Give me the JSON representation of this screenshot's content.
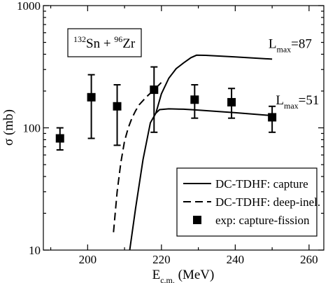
{
  "chart_data": {
    "type": "line",
    "xlabel": {
      "main": "E",
      "sub": "c.m.",
      "unit": " (MeV)"
    },
    "ylabel": "σ (mb)",
    "xlim": [
      188,
      264
    ],
    "ylim": [
      10,
      1000
    ],
    "yscale": "log",
    "grid": false,
    "x_ticks": [
      200,
      220,
      240,
      260
    ],
    "x_tick_labels": [
      "200",
      "220",
      "240",
      "260"
    ],
    "y_ticks": [
      10,
      100,
      1000
    ],
    "y_tick_labels": [
      "10",
      "100",
      "1000"
    ],
    "reaction_label": {
      "mass1": "132",
      "el1": "Sn",
      "plus": " + ",
      "mass2": "96",
      "el2": "Zr"
    },
    "annotations": [
      {
        "main": "L",
        "sub": "max",
        "rest": "=87",
        "x": 249,
        "y": 450
      },
      {
        "main": "L",
        "sub": "max",
        "rest": "=51",
        "x": 251,
        "y": 156
      }
    ],
    "legend_position": "bottom-right",
    "series": [
      {
        "name": "DC-TDHF: capture",
        "kind": "line",
        "dash": "solid",
        "x": [
          211.4,
          213,
          215,
          217,
          218.5,
          219.5,
          222,
          226,
          229.5,
          240,
          250
        ],
        "y": [
          10,
          22,
          55,
          110,
          132,
          141,
          143,
          142,
          140,
          133,
          126
        ]
      },
      {
        "name": "",
        "kind": "line",
        "dash": "solid",
        "x": [
          218.5,
          220,
          222,
          224,
          226,
          228,
          229.5,
          232,
          240,
          250
        ],
        "y": [
          132,
          190,
          255,
          305,
          340,
          375,
          393,
          392,
          380,
          365
        ]
      },
      {
        "name": "DC-TDHF: deep-inel.",
        "kind": "line",
        "dash": "dashed",
        "x": [
          207,
          208,
          209,
          210,
          211,
          212,
          213,
          214,
          216,
          218,
          220
        ],
        "y": [
          14,
          30,
          52,
          78,
          100,
          120,
          138,
          155,
          180,
          205,
          235
        ]
      },
      {
        "name": "exp: capture-fission",
        "kind": "scatter_errorbars",
        "x": [
          192.5,
          201,
          208,
          218,
          229,
          239,
          250
        ],
        "y": [
          82,
          178,
          150,
          205,
          170,
          162,
          122
        ],
        "err_low": [
          66,
          82,
          72,
          92,
          120,
          120,
          92
        ],
        "err_high": [
          100,
          272,
          225,
          315,
          225,
          210,
          150
        ]
      }
    ]
  }
}
